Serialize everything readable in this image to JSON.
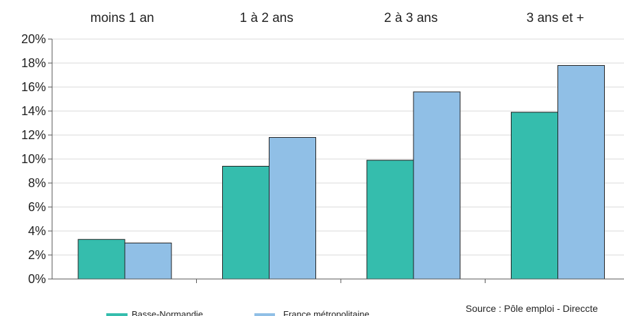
{
  "colors": {
    "basse_normandie": "#35bdad",
    "france": "#90bfe6",
    "gridline": "#d9d9d9",
    "axis": "#555555"
  },
  "source_text": "Source : Pôle emploi - Direccte",
  "chart_data": {
    "type": "bar",
    "categories": [
      "moins 1 an",
      "1 à 2 ans",
      "2 à 3 ans",
      "3 ans et +"
    ],
    "category_axis_position": "top",
    "series": [
      {
        "name": "Basse-Normandie",
        "values": [
          3.3,
          9.4,
          9.9,
          13.9
        ]
      },
      {
        "name": "France métropolitaine",
        "values": [
          3.0,
          11.8,
          15.6,
          17.8
        ]
      }
    ],
    "y_unit": "%",
    "yticks": [
      "0%",
      "2%",
      "4%",
      "6%",
      "8%",
      "10%",
      "12%",
      "14%",
      "16%",
      "18%",
      "20%"
    ],
    "ylim": [
      0,
      20
    ],
    "grid": true,
    "legend_position": "bottom",
    "title": "",
    "xlabel": "",
    "ylabel": ""
  }
}
